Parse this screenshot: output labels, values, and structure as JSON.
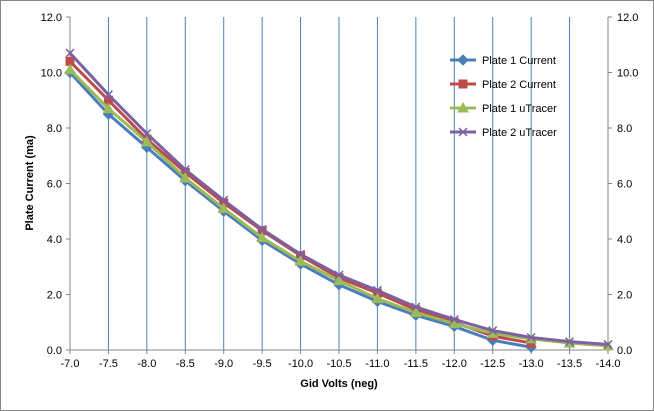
{
  "chart_data": {
    "type": "line",
    "xlabel": "Gid Volts (neg)",
    "ylabel": "Plate Current (ma)",
    "categories": [
      "-7.0",
      "-7.5",
      "-8.0",
      "-8.5",
      "-9.0",
      "-9.5",
      "-10.0",
      "-10.5",
      "-11.0",
      "-11.5",
      "-12.0",
      "-12.5",
      "-13.0",
      "-13.5",
      "-14.0"
    ],
    "ylim": [
      0,
      12
    ],
    "yticks": [
      "0.0",
      "2.0",
      "4.0",
      "6.0",
      "8.0",
      "10.0",
      "12.0"
    ],
    "secondary_yticks": [
      "0.0",
      "2.0",
      "4.0",
      "6.0",
      "8.0",
      "10.0",
      "12.0"
    ],
    "grid": "vertical",
    "legend_position": "right",
    "series": [
      {
        "name": "Plate 1 Current",
        "color": "#4a7ebb",
        "marker": "diamond",
        "values": [
          10.0,
          8.5,
          7.3,
          6.1,
          5.0,
          3.95,
          3.1,
          2.35,
          1.75,
          1.25,
          0.85,
          0.35,
          0.1,
          null,
          null
        ]
      },
      {
        "name": "Plate 2 Current",
        "color": "#be4b48",
        "marker": "square",
        "values": [
          10.4,
          9.0,
          7.6,
          6.4,
          5.3,
          4.3,
          3.4,
          2.6,
          2.05,
          1.45,
          1.0,
          0.5,
          0.25,
          null,
          null
        ]
      },
      {
        "name": "Plate 1 uTracer",
        "color": "#9bbb59",
        "marker": "triangle",
        "values": [
          10.1,
          8.7,
          7.5,
          6.2,
          5.1,
          4.05,
          3.2,
          2.5,
          1.85,
          1.35,
          0.95,
          0.6,
          0.4,
          0.25,
          0.15
        ]
      },
      {
        "name": "Plate 2 uTracer",
        "color": "#7d60a0",
        "marker": "x",
        "values": [
          10.7,
          9.2,
          7.8,
          6.5,
          5.4,
          4.35,
          3.45,
          2.7,
          2.15,
          1.55,
          1.1,
          0.7,
          0.45,
          0.3,
          0.2
        ]
      }
    ]
  }
}
